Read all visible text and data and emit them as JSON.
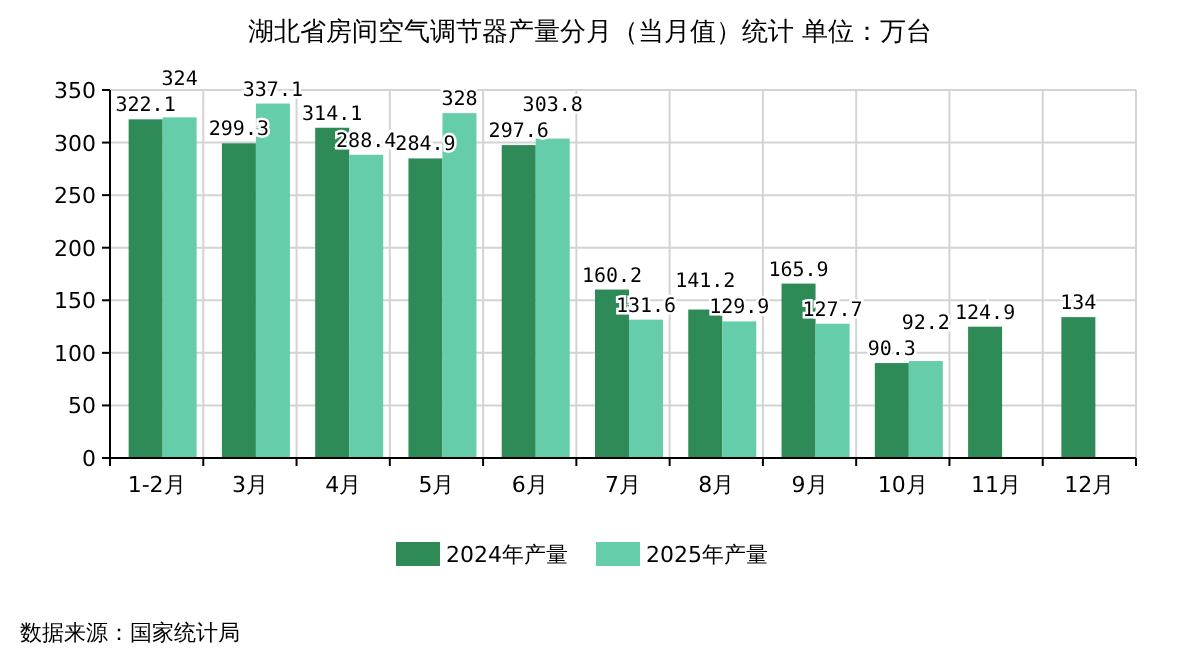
{
  "chart_data": {
    "type": "bar",
    "title": "湖北省房间空气调节器产量分月（当月值）统计  单位：万台",
    "categories": [
      "1-2月",
      "3月",
      "4月",
      "5月",
      "6月",
      "7月",
      "8月",
      "9月",
      "10月",
      "11月",
      "12月"
    ],
    "series": [
      {
        "name": "2024年产量",
        "color": "#2e8b57",
        "values": [
          322.1,
          299.3,
          314.1,
          284.9,
          297.6,
          160.2,
          141.2,
          165.9,
          90.3,
          124.9,
          134
        ]
      },
      {
        "name": "2025年产量",
        "color": "#66cdaa",
        "values": [
          324,
          337.1,
          288.4,
          328,
          303.8,
          131.6,
          129.9,
          127.7,
          92.2,
          null,
          null
        ]
      }
    ],
    "ylim": [
      0,
      350
    ],
    "yticks": [
      0,
      50,
      100,
      150,
      200,
      250,
      300,
      350
    ],
    "grid": true,
    "legend": "bottom",
    "data_labels": true,
    "annotations": [
      "数据来源：国家统计局"
    ]
  }
}
